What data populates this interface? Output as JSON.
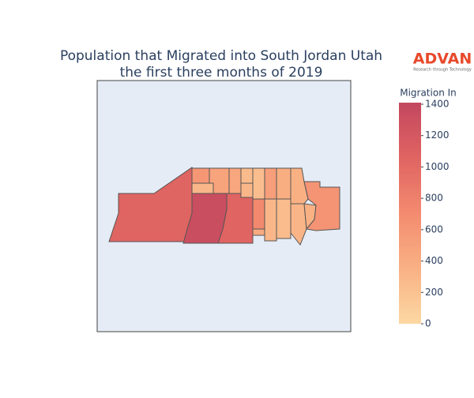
{
  "chart_data": {
    "type": "choropleth",
    "title_lines": [
      "Population that Migrated into South Jordan Utah",
      "the first three months of 2019"
    ],
    "logo": {
      "name": "ADVAN",
      "tagline": "Research through Technology"
    },
    "colorbar_title": "Migration In",
    "values": [
      1050,
      1330,
      1060,
      600,
      300,
      480,
      450,
      260,
      300,
      240,
      520,
      380,
      350,
      720,
      420,
      300,
      250,
      320,
      350,
      620
    ],
    "zlim": [
      0,
      1410
    ],
    "zticks": [
      0,
      200,
      400,
      600,
      800,
      1000,
      1200,
      1400
    ],
    "colorscale": [
      "#fcd8a3",
      "#f9b184",
      "#f38b6f",
      "#df6462",
      "#c3475f"
    ],
    "border_color": "#555555",
    "background": "#e5ecf6"
  }
}
